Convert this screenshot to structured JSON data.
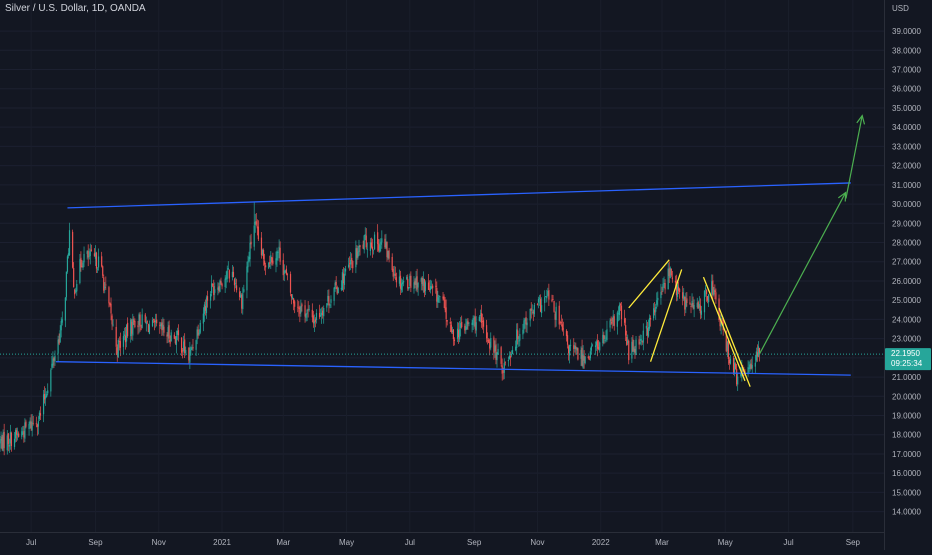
{
  "header": {
    "title": "Silver / U.S. Dollar, 1D, OANDA"
  },
  "price_axis": {
    "currency": "USD",
    "ticks": [
      "14.0000",
      "15.0000",
      "16.0000",
      "17.0000",
      "18.0000",
      "19.0000",
      "20.0000",
      "21.0000",
      "22.0000",
      "23.0000",
      "24.0000",
      "25.0000",
      "26.0000",
      "27.0000",
      "28.0000",
      "29.0000",
      "30.0000",
      "31.0000",
      "32.0000",
      "33.0000",
      "34.0000",
      "35.0000",
      "36.0000",
      "37.0000",
      "38.0000",
      "39.0000"
    ],
    "current_price": "22.1950",
    "countdown": "09:25:34"
  },
  "time_axis": {
    "labels": [
      "Jul",
      "Sep",
      "Nov",
      "2021",
      "Mar",
      "May",
      "Jul",
      "Sep",
      "Nov",
      "2022",
      "Mar",
      "May",
      "Jul",
      "Sep"
    ]
  },
  "colors": {
    "background": "#131722",
    "bull": "#26a69a",
    "bear": "#ef5350",
    "channel": "#2962ff",
    "wedge": "#ffeb3b",
    "projection": "#4caf50",
    "price_tag": "#26a69a"
  },
  "chart_data": {
    "type": "candlestick",
    "title": "Silver / U.S. Dollar, 1D, OANDA",
    "ylim": [
      13.2,
      40.2
    ],
    "xlim": [
      "2020-06-01",
      "2022-10-01"
    ],
    "y_unit": "USD",
    "anchors": [
      [
        "2020-06-01",
        17.6
      ],
      [
        "2020-06-20",
        18.0
      ],
      [
        "2020-07-10",
        19.0
      ],
      [
        "2020-07-22",
        21.8
      ],
      [
        "2020-08-01",
        24.0
      ],
      [
        "2020-08-07",
        28.5
      ],
      [
        "2020-08-11",
        25.5
      ],
      [
        "2020-08-20",
        27.3
      ],
      [
        "2020-09-05",
        27.0
      ],
      [
        "2020-09-22",
        22.5
      ],
      [
        "2020-10-10",
        24.0
      ],
      [
        "2020-10-30",
        23.5
      ],
      [
        "2020-11-20",
        23.0
      ],
      [
        "2020-11-30",
        22.0
      ],
      [
        "2020-12-20",
        25.5
      ],
      [
        "2021-01-10",
        26.5
      ],
      [
        "2021-01-20",
        25.0
      ],
      [
        "2021-02-01",
        29.0
      ],
      [
        "2021-02-10",
        27.0
      ],
      [
        "2021-02-25",
        27.5
      ],
      [
        "2021-03-10",
        25.0
      ],
      [
        "2021-03-31",
        24.0
      ],
      [
        "2021-04-20",
        25.5
      ],
      [
        "2021-05-18",
        28.0
      ],
      [
        "2021-06-05",
        28.0
      ],
      [
        "2021-06-20",
        26.0
      ],
      [
        "2021-07-10",
        26.0
      ],
      [
        "2021-08-01",
        25.0
      ],
      [
        "2021-08-10",
        23.2
      ],
      [
        "2021-09-05",
        24.0
      ],
      [
        "2021-09-29",
        21.5
      ],
      [
        "2021-10-20",
        24.0
      ],
      [
        "2021-11-12",
        25.2
      ],
      [
        "2021-12-01",
        22.5
      ],
      [
        "2021-12-15",
        22.0
      ],
      [
        "2022-01-05",
        23.0
      ],
      [
        "2022-01-20",
        24.5
      ],
      [
        "2022-01-28",
        22.3
      ],
      [
        "2022-02-15",
        23.5
      ],
      [
        "2022-03-08",
        26.5
      ],
      [
        "2022-03-20",
        25.0
      ],
      [
        "2022-04-05",
        24.5
      ],
      [
        "2022-04-18",
        25.8
      ],
      [
        "2022-05-01",
        22.8
      ],
      [
        "2022-05-13",
        20.8
      ],
      [
        "2022-05-25",
        21.8
      ],
      [
        "2022-06-03",
        22.2
      ]
    ],
    "max_high": {
      "date": "2021-02-01",
      "value": 30.1
    },
    "last_date": "2022-06-03",
    "last_close": 22.195,
    "drawings": {
      "channel_upper": [
        [
          "2020-08-05",
          29.8
        ],
        [
          "2022-08-30",
          31.1
        ]
      ],
      "channel_lower": [
        [
          "2020-07-25",
          21.8
        ],
        [
          "2022-08-30",
          21.1
        ]
      ],
      "wedge_lines": [
        [
          [
            "2022-02-18",
            21.8
          ],
          [
            "2022-03-20",
            26.6
          ]
        ],
        [
          [
            "2022-01-28",
            24.6
          ],
          [
            "2022-03-08",
            27.1
          ]
        ],
        [
          [
            "2022-04-25",
            24.6
          ],
          [
            "2022-05-25",
            20.5
          ]
        ],
        [
          [
            "2022-04-10",
            26.2
          ],
          [
            "2022-05-20",
            20.8
          ]
        ]
      ],
      "projection_path": [
        [
          "2022-06-03",
          22.2
        ],
        [
          "2022-08-25",
          30.6
        ],
        [
          "2022-09-10",
          34.6
        ]
      ]
    }
  }
}
